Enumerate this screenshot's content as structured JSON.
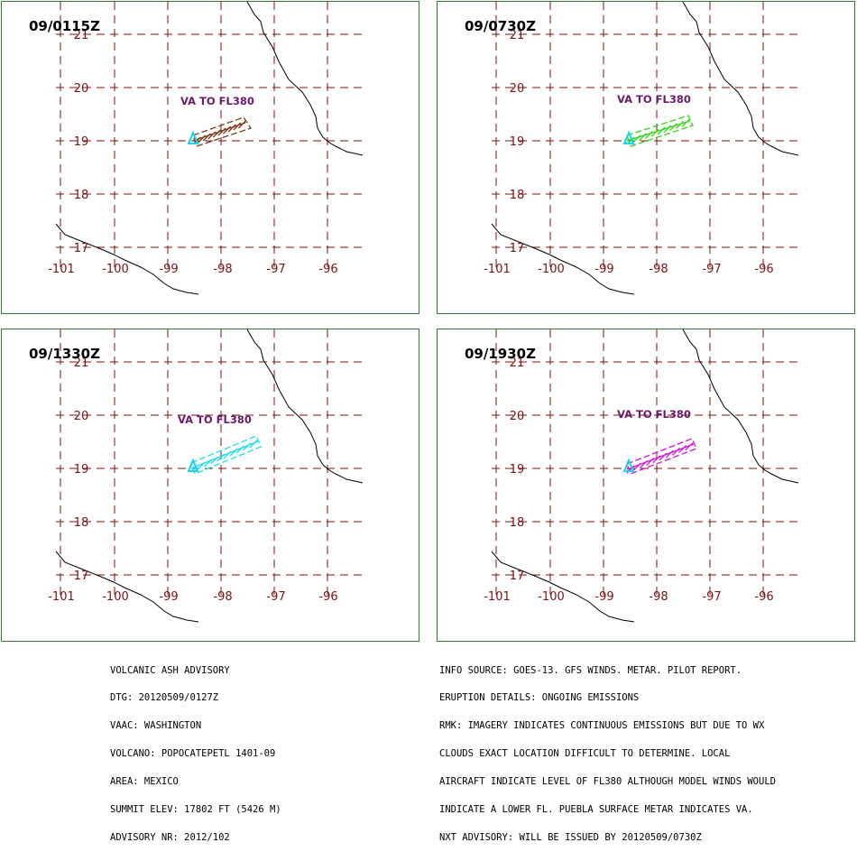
{
  "colors": {
    "grid": "#7a1212",
    "tick_label": "#7a1212",
    "va_label": "#6a1b6a",
    "volcano": "#19d3e6",
    "coast": "#000000",
    "frame": "#2e7d32"
  },
  "icons": {
    "volcano": "triangle-volcano-icon"
  },
  "map": {
    "lon_labels": [
      "-101",
      "-100",
      "-99",
      "-98",
      "-97",
      "-96"
    ],
    "lat_labels": [
      "21",
      "20",
      "19",
      "18",
      "17"
    ]
  },
  "panels": [
    {
      "time": "09/0115Z",
      "label": "VA TO FL380",
      "ash_color": "#7b3b1b"
    },
    {
      "time": "09/0730Z",
      "label": "VA TO FL380",
      "ash_color": "#33d617"
    },
    {
      "time": "09/1330Z",
      "label": "VA TO FL380",
      "ash_color": "#19e0e6"
    },
    {
      "time": "09/1930Z",
      "label": "VA TO FL380",
      "ash_color": "#d417d4"
    }
  ],
  "advisory_left": [
    "VOLCANIC ASH ADVISORY",
    "DTG: 20120509/0127Z",
    "VAAC: WASHINGTON",
    "VOLCANO: POPOCATEPETL 1401-09",
    "AREA: MEXICO",
    "SUMMIT ELEV: 17802 FT (5426 M)",
    "ADVISORY NR: 2012/102"
  ],
  "advisory_right": [
    "INFO SOURCE: GOES-13. GFS WINDS. METAR. PILOT REPORT.",
    "ERUPTION DETAILS: ONGOING EMISSIONS",
    "RMK: IMAGERY INDICATES CONTINUOUS EMISSIONS BUT DUE TO WX",
    "CLOUDS EXACT LOCATION DIFFICULT TO DETERMINE. LOCAL",
    "AIRCRAFT INDICATE LEVEL OF FL380 ALTHOUGH MODEL WINDS WOULD",
    "INDICATE A LOWER FL. PUEBLA SURFACE METAR INDICATES VA.",
    "NXT ADVISORY: WILL BE ISSUED BY 20120509/0730Z"
  ]
}
